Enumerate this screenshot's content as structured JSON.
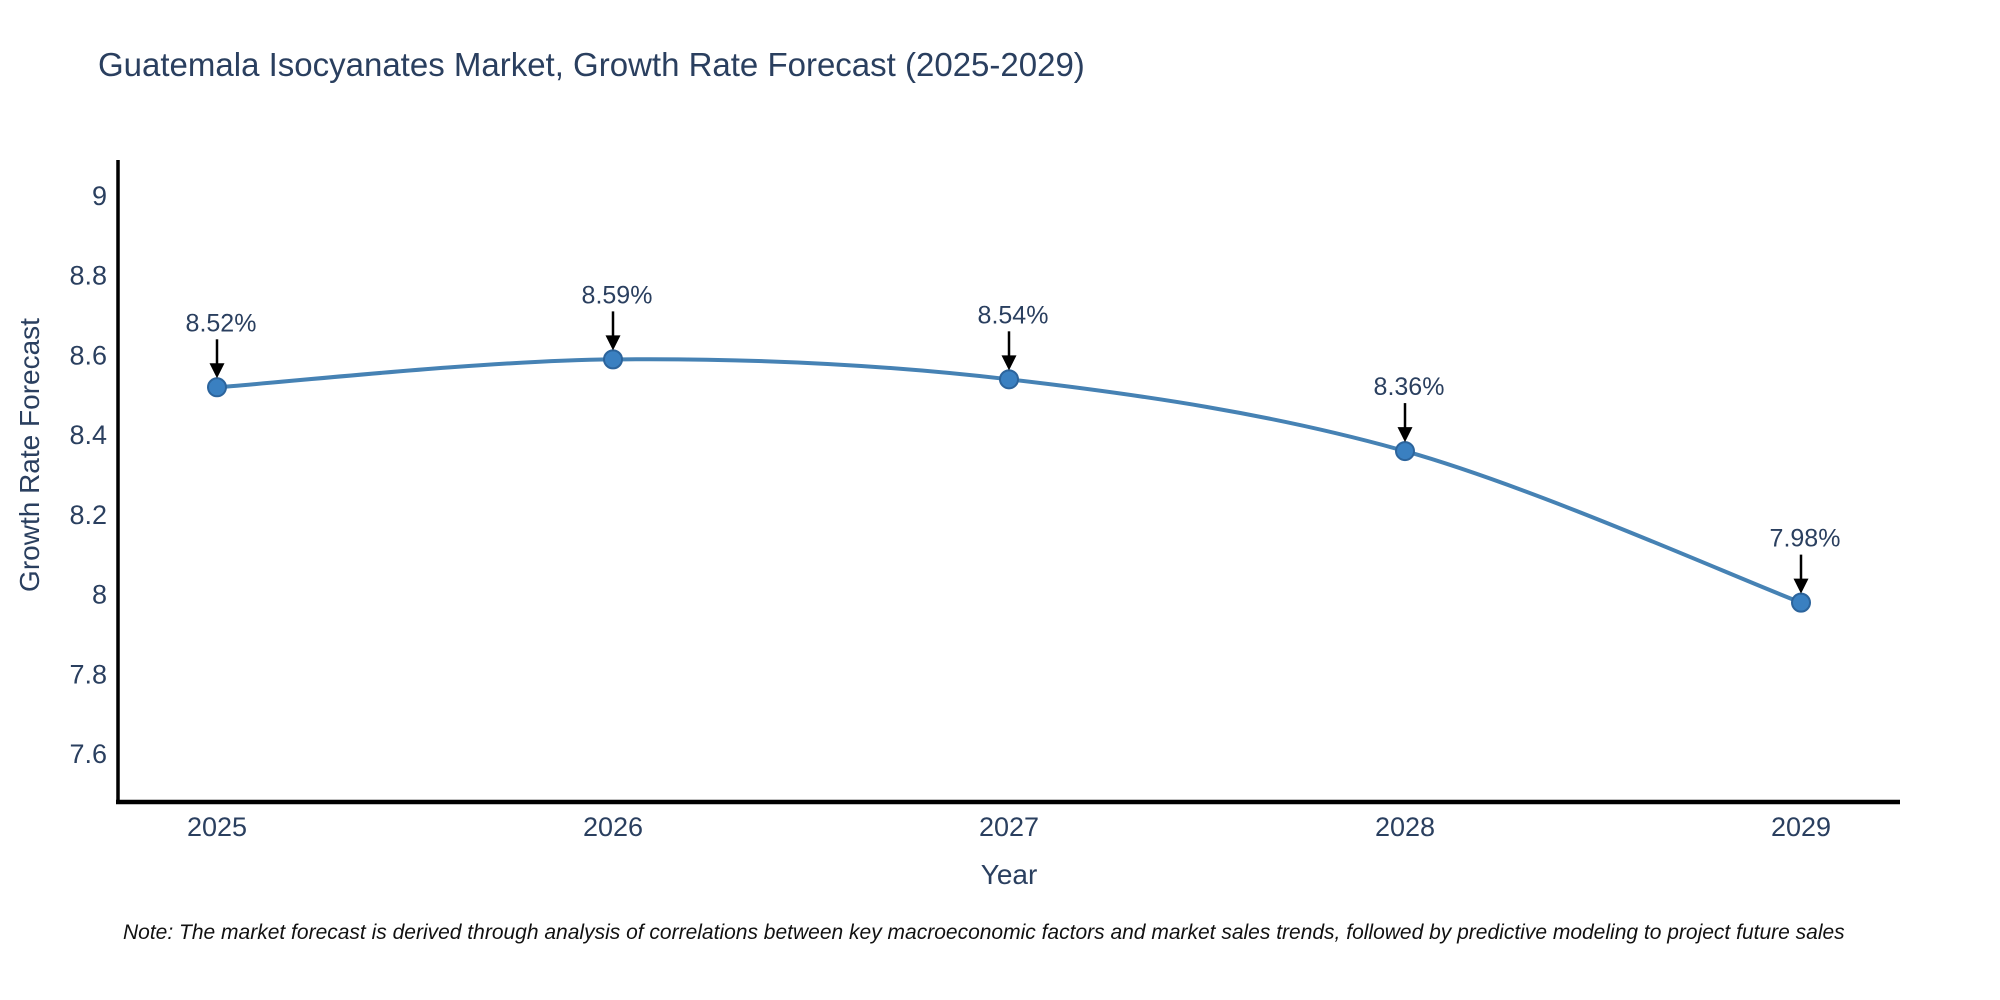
{
  "chart_data": {
    "type": "line",
    "title": "Guatemala Isocyanates Market, Growth Rate Forecast (2025-2029)",
    "xlabel": "Year",
    "ylabel": "Growth Rate Forecast",
    "line_shape": "spline",
    "grid": false,
    "legend": "none",
    "x": [
      2025,
      2026,
      2027,
      2028,
      2029
    ],
    "values": [
      8.52,
      8.59,
      8.54,
      8.36,
      7.98
    ],
    "point_labels": [
      "8.52%",
      "8.59%",
      "8.54%",
      "8.36%",
      "7.98%"
    ],
    "xticks": [
      "2025",
      "2026",
      "2027",
      "2028",
      "2029"
    ],
    "yticks": [
      7.6,
      7.8,
      8.0,
      8.2,
      8.4,
      8.6,
      8.8,
      9.0
    ],
    "ytick_labels": [
      "7.6",
      "7.8",
      "8",
      "8.2",
      "8.4",
      "8.6",
      "8.8",
      "9"
    ],
    "xlim": [
      2024.75,
      2029.25
    ],
    "ylim": [
      7.48,
      9.09
    ],
    "colors": {
      "line": "#4682b4",
      "marker_fill": "#3a80c1",
      "marker_stroke": "#2c649c",
      "axis": "#000000",
      "text": "#2a3f5f",
      "annotation_arrow": "#000000"
    }
  },
  "note": {
    "text": "Note: The market forecast is derived through analysis of correlations between key macroeconomic factors and market sales trends, followed by predictive modeling to project future sales"
  }
}
